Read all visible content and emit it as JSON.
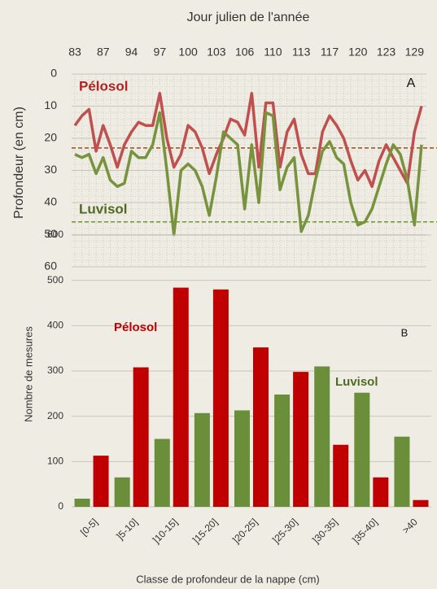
{
  "chart_data": [
    {
      "type": "line",
      "x_label": "Jour julien de l'année",
      "y_label": "Profondeur  (en cm)",
      "categories": [
        "83",
        null,
        null,
        null,
        "87",
        null,
        null,
        null,
        "94",
        null,
        null,
        null,
        "97",
        null,
        null,
        null,
        "100",
        null,
        null,
        null,
        "103",
        null,
        null,
        null,
        "106",
        null,
        null,
        null,
        "110",
        null,
        null,
        null,
        "113",
        null,
        null,
        null,
        "117",
        null,
        null,
        null,
        "120",
        null,
        null,
        null,
        "123",
        null,
        null,
        null,
        "129",
        null
      ],
      "series": [
        {
          "name": "Pélosol",
          "color": "#c0504d",
          "values": [
            16,
            13,
            11,
            24,
            16,
            22,
            29,
            22,
            18,
            15,
            16,
            16,
            6,
            20,
            29,
            25,
            16,
            18,
            23,
            31,
            25,
            20,
            14,
            15,
            19,
            6,
            29,
            9,
            9,
            29,
            18,
            14,
            25,
            31,
            31,
            18,
            13,
            16,
            20,
            27,
            33,
            30,
            35,
            27,
            22,
            26,
            30,
            34,
            18,
            10
          ]
        },
        {
          "name": "Luvisol",
          "color": "#77933c",
          "values": [
            25,
            26,
            25,
            31,
            26,
            33,
            35,
            34,
            24,
            26,
            26,
            22,
            12,
            30,
            50,
            30,
            28,
            30,
            35,
            44,
            32,
            18,
            20,
            22,
            42,
            22,
            40,
            12,
            13,
            36,
            29,
            26,
            49,
            44,
            33,
            24,
            21,
            26,
            28,
            40,
            47,
            46,
            42,
            35,
            28,
            22,
            25,
            33,
            47,
            22
          ]
        }
      ],
      "reference_lines": [
        {
          "value": 23,
          "color": "#9c4a1a"
        },
        {
          "value": 46,
          "color": "#6e9632"
        }
      ],
      "ylim": [
        0,
        60
      ],
      "yticks": [
        0,
        10,
        20,
        30,
        40,
        50,
        60
      ],
      "y_reversed": true,
      "annotations": [
        {
          "text": "Pélosol",
          "color": "#b22222"
        },
        {
          "text": "Luvisol",
          "color": "#4f6b22"
        },
        {
          "text": "A",
          "color": "#111"
        }
      ]
    },
    {
      "type": "bar",
      "x_label": "Classe de profondeur  de la nappe (cm)",
      "y_label": "Nombre de mesures",
      "categories": [
        "[0-5]",
        "]5-10]",
        "]10-15]",
        "]15-20]",
        "]20-25]",
        "]25-30]",
        "]30-35]",
        "]35-40]",
        ">40"
      ],
      "series": [
        {
          "name": "Luvisol",
          "color": "#6b8e3a",
          "values": [
            18,
            65,
            150,
            207,
            213,
            248,
            310,
            252,
            155
          ]
        },
        {
          "name": "Pélosol",
          "color": "#c00000",
          "values": [
            113,
            308,
            484,
            480,
            352,
            298,
            137,
            65,
            15
          ]
        }
      ],
      "ylim": [
        0,
        600
      ],
      "yticks": [
        0,
        100,
        200,
        300,
        400,
        500,
        600
      ],
      "grid": true,
      "annotations": [
        {
          "text": "Pélosol",
          "color": "#c00000"
        },
        {
          "text": "Luvisol",
          "color": "#4f6b22"
        },
        {
          "text": "B",
          "color": "#111"
        }
      ]
    }
  ]
}
